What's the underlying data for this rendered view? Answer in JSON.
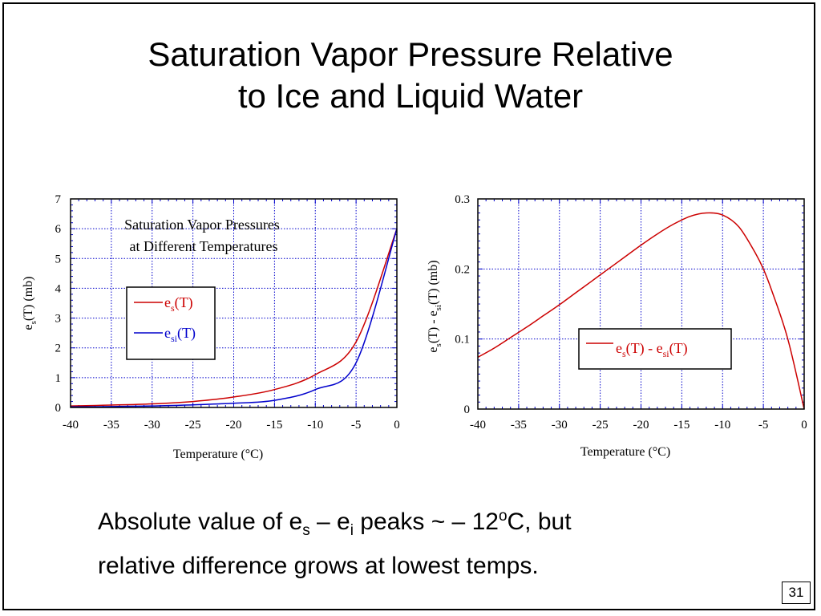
{
  "slide": {
    "title_line1": "Saturation Vapor Pressure Relative",
    "title_line2": "to Ice and Liquid Water",
    "caption": {
      "p1": "Absolute value of e",
      "sub_s": "s",
      "p2": " – e",
      "sub_i": "i",
      "p3": " peaks ~ – 12",
      "sup_o": "o",
      "p4": "C, but",
      "line2": "relative difference grows at lowest temps."
    },
    "page_number": "31"
  },
  "chart_data": [
    {
      "type": "line",
      "title_line1": "Saturation Vapor Pressures",
      "title_line2": "at Different Temperatures",
      "xlabel": "Temperature (°C)",
      "ylabel": {
        "main": "e",
        "sub": "s",
        "rest": "(T) (mb)"
      },
      "xlim": [
        -40,
        0
      ],
      "ylim": [
        0,
        7
      ],
      "x_ticks": [
        "-40",
        "-35",
        "-30",
        "-25",
        "-20",
        "-15",
        "-10",
        "-5",
        "0"
      ],
      "y_ticks": [
        "0",
        "1",
        "2",
        "3",
        "4",
        "5",
        "6",
        "7"
      ],
      "grid": true,
      "legend_position": "center-left",
      "x": [
        -40,
        -35,
        -30,
        -25,
        -20,
        -15,
        -10,
        -5,
        0
      ],
      "series": [
        {
          "name": "e",
          "name_sub": "s",
          "name_rest": "(T)",
          "color": "#cc0000",
          "values": [
            0.05,
            0.08,
            0.12,
            0.2,
            0.35,
            0.6,
            1.1,
            2.2,
            6.0
          ]
        },
        {
          "name": "e",
          "name_sub": "si",
          "name_rest": "(T)",
          "color": "#0000cc",
          "values": [
            0.02,
            0.03,
            0.05,
            0.09,
            0.14,
            0.24,
            0.6,
            1.5,
            6.0
          ]
        }
      ]
    },
    {
      "type": "line",
      "xlabel": "Temperature (°C)",
      "ylabel": {
        "p1": "e",
        "sub1": "s",
        "p2": "(T) - e",
        "sub2": "si",
        "p3": "(T) (mb)"
      },
      "xlim": [
        -40,
        0
      ],
      "ylim": [
        0,
        0.3
      ],
      "x_ticks": [
        "-40",
        "-35",
        "-30",
        "-25",
        "-20",
        "-15",
        "-10",
        "-5",
        "0"
      ],
      "y_ticks": [
        "0",
        "0.1",
        "0.2",
        "0.3"
      ],
      "grid": true,
      "legend_position": "center-right",
      "x": [
        -40,
        -38,
        -36,
        -34,
        -32,
        -30,
        -28,
        -26,
        -24,
        -22,
        -20,
        -18,
        -16,
        -14,
        -12,
        -10,
        -8,
        -6,
        -5,
        -4,
        -2,
        0
      ],
      "series": [
        {
          "name": "e",
          "name_sub": "s",
          "name_mid": "(T) - e",
          "name_sub2": "si",
          "name_rest": "(T)",
          "color": "#cc0000",
          "values": [
            0.074,
            0.087,
            0.102,
            0.117,
            0.133,
            0.149,
            0.166,
            0.183,
            0.2,
            0.217,
            0.234,
            0.25,
            0.264,
            0.275,
            0.28,
            0.277,
            0.26,
            0.223,
            0.2,
            0.17,
            0.1,
            0.0
          ]
        }
      ]
    }
  ]
}
